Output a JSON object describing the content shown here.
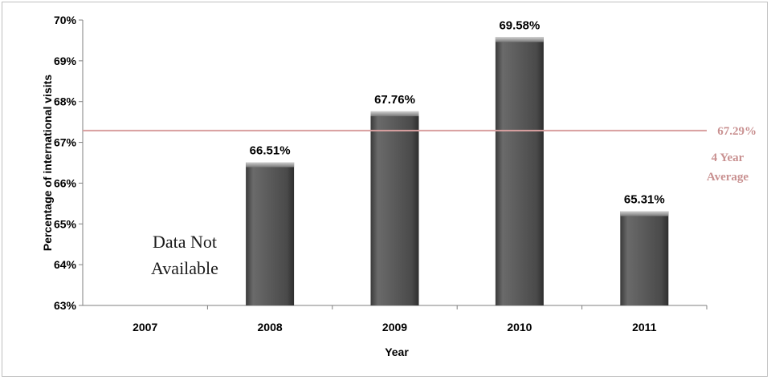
{
  "chart_data": {
    "type": "bar",
    "categories": [
      "2007",
      "2008",
      "2009",
      "2010",
      "2011"
    ],
    "values": [
      null,
      66.51,
      67.76,
      69.58,
      65.31
    ],
    "data_labels": [
      "",
      "66.51%",
      "67.76%",
      "69.58%",
      "65.31%"
    ],
    "xlabel": "Year",
    "ylabel": "Percentage of international visits",
    "ylim": [
      63,
      70
    ],
    "yticks": [
      "63%",
      "64%",
      "65%",
      "66%",
      "67%",
      "68%",
      "69%",
      "70%"
    ],
    "grid": false,
    "bar_color": "#595959",
    "average_line": {
      "value": 67.29,
      "label": "67.29%",
      "caption_line1": "4 Year",
      "caption_line2": "Average",
      "color": "#d9a0a0",
      "text_color": "#c99191"
    },
    "annotation": {
      "line1": "Data Not",
      "line2": "Available"
    }
  }
}
